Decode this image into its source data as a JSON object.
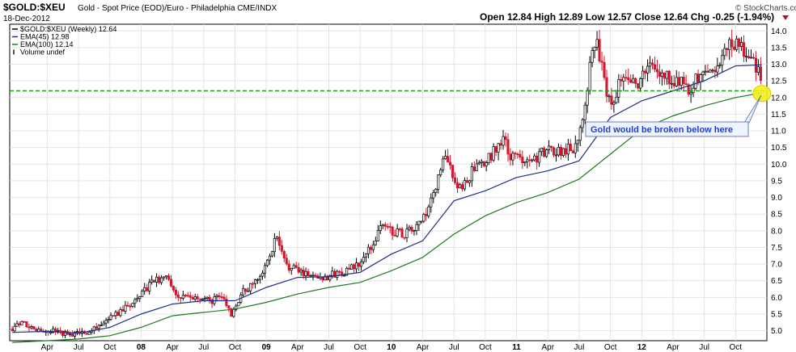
{
  "header": {
    "symbol": "$GOLD:$XEU",
    "description": "Gold - Spot Price (EOD)/Euro - Philadelphia  CME/INDX",
    "date": "18-Dec-2012",
    "ohlc": "Open 12.84  High 12.89  Low 12.57  Close 12.64  Chg -0.25 (-1.94%)",
    "brand": "© StockCharts.com"
  },
  "legend": [
    {
      "label": "$GOLD:$XEU (Weekly) 12.64",
      "color": "#000000",
      "kind": "line"
    },
    {
      "label": "EMA(45) 12.98",
      "color": "#1f2e8a",
      "kind": "line"
    },
    {
      "label": "EMA(100) 12.14",
      "color": "#1e7a1e",
      "kind": "line"
    },
    {
      "label": "Volume undef",
      "color": "#555555",
      "kind": "bar"
    }
  ],
  "annotation": {
    "text": "Gold would be broken below here"
  },
  "chart_data": {
    "type": "line",
    "title": "$GOLD:$XEU",
    "ylim": [
      4.7,
      14.2
    ],
    "yticks": [
      5.0,
      5.5,
      6.0,
      6.5,
      7.0,
      7.5,
      8.0,
      8.5,
      9.0,
      9.5,
      10.0,
      10.5,
      11.0,
      11.5,
      12.0,
      12.5,
      13.0,
      13.5,
      14.0
    ],
    "ytick_labels": [
      "5.0",
      "5.5",
      "6.0",
      "6.5",
      "7.0",
      "7.5",
      "8.0",
      "8.5",
      "9.0",
      "9.5",
      "10.0",
      "10.5",
      "11.0",
      "11.5",
      "12.0",
      "12.5",
      "13.0",
      "13.5",
      "14.0"
    ],
    "xlim": [
      2006.95,
      2013.0
    ],
    "xticks": [
      {
        "label": "Apr",
        "t": 2007.25
      },
      {
        "label": "Jul",
        "t": 2007.5
      },
      {
        "label": "Oct",
        "t": 2007.75
      },
      {
        "label": "08",
        "t": 2008.0,
        "bold": true
      },
      {
        "label": "Apr",
        "t": 2008.25
      },
      {
        "label": "Jul",
        "t": 2008.5
      },
      {
        "label": "Oct",
        "t": 2008.75
      },
      {
        "label": "09",
        "t": 2009.0,
        "bold": true
      },
      {
        "label": "Apr",
        "t": 2009.25
      },
      {
        "label": "Jul",
        "t": 2009.5
      },
      {
        "label": "Oct",
        "t": 2009.75
      },
      {
        "label": "10",
        "t": 2010.0,
        "bold": true
      },
      {
        "label": "Apr",
        "t": 2010.25
      },
      {
        "label": "Jul",
        "t": 2010.5
      },
      {
        "label": "Oct",
        "t": 2010.75
      },
      {
        "label": "11",
        "t": 2011.0,
        "bold": true
      },
      {
        "label": "Apr",
        "t": 2011.25
      },
      {
        "label": "Jul",
        "t": 2011.5
      },
      {
        "label": "Oct",
        "t": 2011.75
      },
      {
        "label": "12",
        "t": 2012.0,
        "bold": true
      },
      {
        "label": "Apr",
        "t": 2012.25
      },
      {
        "label": "Jul",
        "t": 2012.5
      },
      {
        "label": "Oct",
        "t": 2012.75
      }
    ],
    "price_path": [
      [
        2006.97,
        5.05
      ],
      [
        2007.05,
        5.22
      ],
      [
        2007.15,
        5.0
      ],
      [
        2007.3,
        4.98
      ],
      [
        2007.45,
        4.88
      ],
      [
        2007.6,
        5.0
      ],
      [
        2007.75,
        5.35
      ],
      [
        2007.85,
        5.6
      ],
      [
        2008.0,
        6.1
      ],
      [
        2008.1,
        6.5
      ],
      [
        2008.2,
        6.6
      ],
      [
        2008.3,
        6.0
      ],
      [
        2008.45,
        5.95
      ],
      [
        2008.55,
        5.9
      ],
      [
        2008.65,
        6.0
      ],
      [
        2008.72,
        5.5
      ],
      [
        2008.8,
        6.1
      ],
      [
        2008.9,
        6.4
      ],
      [
        2009.0,
        7.0
      ],
      [
        2009.08,
        7.8
      ],
      [
        2009.15,
        7.0
      ],
      [
        2009.25,
        6.8
      ],
      [
        2009.35,
        6.7
      ],
      [
        2009.45,
        6.6
      ],
      [
        2009.55,
        6.7
      ],
      [
        2009.65,
        6.8
      ],
      [
        2009.75,
        7.0
      ],
      [
        2009.85,
        7.6
      ],
      [
        2009.92,
        8.2
      ],
      [
        2010.0,
        8.0
      ],
      [
        2010.1,
        7.9
      ],
      [
        2010.2,
        8.1
      ],
      [
        2010.3,
        8.6
      ],
      [
        2010.35,
        9.3
      ],
      [
        2010.42,
        10.2
      ],
      [
        2010.48,
        9.8
      ],
      [
        2010.55,
        9.2
      ],
      [
        2010.65,
        9.8
      ],
      [
        2010.75,
        10.0
      ],
      [
        2010.85,
        10.6
      ],
      [
        2010.9,
        10.7
      ],
      [
        2010.95,
        10.2
      ],
      [
        2011.05,
        10.2
      ],
      [
        2011.15,
        10.2
      ],
      [
        2011.25,
        10.4
      ],
      [
        2011.35,
        10.4
      ],
      [
        2011.45,
        10.5
      ],
      [
        2011.5,
        10.9
      ],
      [
        2011.57,
        12.5
      ],
      [
        2011.62,
        13.8
      ],
      [
        2011.67,
        13.2
      ],
      [
        2011.72,
        12.0
      ],
      [
        2011.78,
        12.0
      ],
      [
        2011.85,
        12.8
      ],
      [
        2011.92,
        12.6
      ],
      [
        2011.98,
        12.4
      ],
      [
        2012.05,
        13.0
      ],
      [
        2012.1,
        12.8
      ],
      [
        2012.2,
        12.6
      ],
      [
        2012.3,
        12.5
      ],
      [
        2012.38,
        12.3
      ],
      [
        2012.45,
        12.6
      ],
      [
        2012.55,
        12.8
      ],
      [
        2012.65,
        13.2
      ],
      [
        2012.72,
        13.7
      ],
      [
        2012.78,
        13.5
      ],
      [
        2012.85,
        13.3
      ],
      [
        2012.9,
        13.0
      ],
      [
        2012.96,
        12.64
      ]
    ],
    "ema45_path": [
      [
        2006.97,
        4.95
      ],
      [
        2007.25,
        4.98
      ],
      [
        2007.5,
        4.92
      ],
      [
        2007.75,
        5.1
      ],
      [
        2008.0,
        5.5
      ],
      [
        2008.25,
        5.8
      ],
      [
        2008.5,
        5.9
      ],
      [
        2008.75,
        5.9
      ],
      [
        2009.0,
        6.3
      ],
      [
        2009.25,
        6.6
      ],
      [
        2009.5,
        6.62
      ],
      [
        2009.75,
        6.75
      ],
      [
        2010.0,
        7.3
      ],
      [
        2010.25,
        7.7
      ],
      [
        2010.5,
        8.9
      ],
      [
        2010.75,
        9.2
      ],
      [
        2011.0,
        9.6
      ],
      [
        2011.25,
        9.8
      ],
      [
        2011.5,
        10.1
      ],
      [
        2011.75,
        11.4
      ],
      [
        2012.0,
        11.9
      ],
      [
        2012.25,
        12.2
      ],
      [
        2012.5,
        12.5
      ],
      [
        2012.75,
        12.95
      ],
      [
        2012.96,
        12.98
      ]
    ],
    "ema100_path": [
      [
        2006.97,
        4.65
      ],
      [
        2007.25,
        4.7
      ],
      [
        2007.5,
        4.75
      ],
      [
        2007.75,
        4.85
      ],
      [
        2008.0,
        5.1
      ],
      [
        2008.25,
        5.45
      ],
      [
        2008.5,
        5.55
      ],
      [
        2008.75,
        5.65
      ],
      [
        2009.0,
        5.85
      ],
      [
        2009.25,
        6.1
      ],
      [
        2009.5,
        6.3
      ],
      [
        2009.75,
        6.45
      ],
      [
        2010.0,
        6.8
      ],
      [
        2010.25,
        7.2
      ],
      [
        2010.5,
        7.9
      ],
      [
        2010.75,
        8.45
      ],
      [
        2011.0,
        8.85
      ],
      [
        2011.25,
        9.15
      ],
      [
        2011.5,
        9.55
      ],
      [
        2011.75,
        10.3
      ],
      [
        2012.0,
        11.05
      ],
      [
        2012.25,
        11.45
      ],
      [
        2012.5,
        11.75
      ],
      [
        2012.75,
        12.0
      ],
      [
        2012.96,
        12.14
      ]
    ],
    "support_line": 12.2,
    "highlight": {
      "t": 2012.96,
      "value": 12.12
    },
    "bar_seed": 20121218
  }
}
